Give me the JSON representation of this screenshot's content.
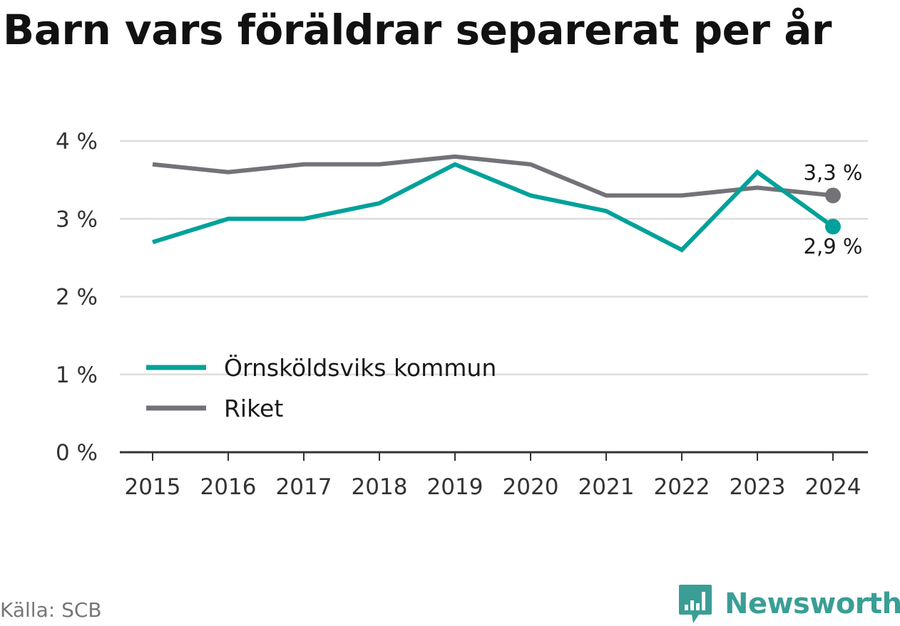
{
  "chart_data": {
    "type": "line",
    "title": "Barn vars föräldrar separerat per år",
    "x": [
      "2015",
      "2016",
      "2017",
      "2018",
      "2019",
      "2020",
      "2021",
      "2022",
      "2023",
      "2024"
    ],
    "series": [
      {
        "name": "Örnsköldsviks kommun",
        "color": "#00a19a",
        "values": [
          2.7,
          3.0,
          3.0,
          3.2,
          3.7,
          3.3,
          3.1,
          2.6,
          3.6,
          2.9
        ],
        "end_label": "2,9 %"
      },
      {
        "name": "Riket",
        "color": "#737278",
        "values": [
          3.7,
          3.6,
          3.7,
          3.7,
          3.8,
          3.7,
          3.3,
          3.3,
          3.4,
          3.3
        ],
        "end_label": "3,3 %"
      }
    ],
    "ylim": [
      0,
      4
    ],
    "yticks": [
      0,
      1,
      2,
      3,
      4
    ],
    "ytick_labels": [
      "0 %",
      "1 %",
      "2 %",
      "3 %",
      "4 %"
    ],
    "grid": true,
    "legend_position": "bottom-left",
    "xlabel": "",
    "ylabel": ""
  },
  "footer": {
    "source": "Källa: SCB",
    "brand": "Newsworthy"
  },
  "colors": {
    "brand": "#3a9e96",
    "grid": "#dddddd",
    "axis": "#333333"
  },
  "icons": {
    "brand_logo": "newsworthy-logo-icon"
  }
}
